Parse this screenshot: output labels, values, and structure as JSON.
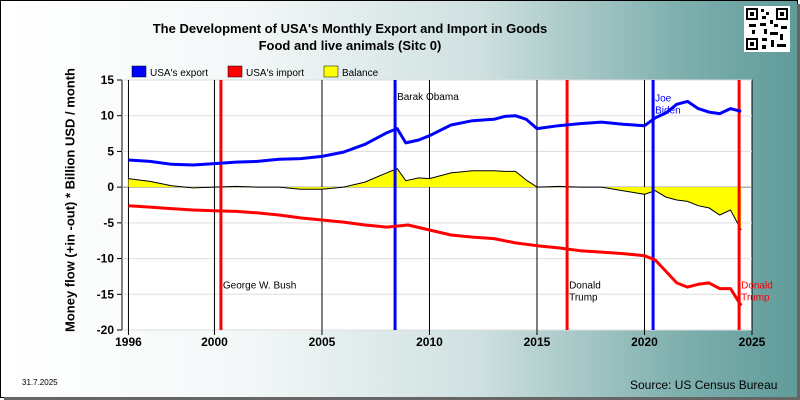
{
  "chart_data": {
    "type": "line",
    "title_line1": "The Development of USA's Monthly Export and Import in Goods",
    "title_line2": "Food and live animals (Sitc 0)",
    "ylabel": "Money flow (+in -out) * Billion USD / month",
    "ylim": [
      -20,
      15
    ],
    "xlim": [
      1995.7,
      2025.0
    ],
    "y_ticks": [
      "15",
      "10",
      "5",
      "0",
      "-5",
      "-10",
      "-15",
      "-20"
    ],
    "x_ticks": [
      "1996",
      "2000",
      "2005",
      "2010",
      "2015",
      "2020",
      "2025"
    ],
    "grid": true,
    "legend": [
      {
        "name": "USA's export",
        "color": "#0000ff"
      },
      {
        "name": "USA's import",
        "color": "#ff0000"
      },
      {
        "name": "Balance",
        "color": "#ffff00"
      }
    ],
    "series": [
      {
        "name": "USA's export",
        "color": "#0000ff",
        "points": [
          [
            1996.0,
            3.8
          ],
          [
            1997.0,
            3.6
          ],
          [
            1998.0,
            3.2
          ],
          [
            1999.0,
            3.1
          ],
          [
            2000.0,
            3.3
          ],
          [
            2001.0,
            3.5
          ],
          [
            2002.0,
            3.6
          ],
          [
            2003.0,
            3.9
          ],
          [
            2004.0,
            4.0
          ],
          [
            2005.0,
            4.3
          ],
          [
            2006.0,
            4.9
          ],
          [
            2007.0,
            6.0
          ],
          [
            2008.0,
            7.6
          ],
          [
            2008.5,
            8.2
          ],
          [
            2008.9,
            6.2
          ],
          [
            2009.5,
            6.6
          ],
          [
            2010.0,
            7.2
          ],
          [
            2011.0,
            8.7
          ],
          [
            2012.0,
            9.3
          ],
          [
            2013.0,
            9.5
          ],
          [
            2013.5,
            9.9
          ],
          [
            2014.0,
            10.0
          ],
          [
            2014.5,
            9.5
          ],
          [
            2015.0,
            8.2
          ],
          [
            2016.0,
            8.6
          ],
          [
            2017.0,
            8.9
          ],
          [
            2018.0,
            9.1
          ],
          [
            2019.0,
            8.8
          ],
          [
            2020.0,
            8.6
          ],
          [
            2020.5,
            9.7
          ],
          [
            2021.0,
            10.4
          ],
          [
            2021.5,
            11.6
          ],
          [
            2022.0,
            12.0
          ],
          [
            2022.5,
            11.0
          ],
          [
            2023.0,
            10.5
          ],
          [
            2023.5,
            10.3
          ],
          [
            2024.0,
            11.0
          ],
          [
            2024.5,
            10.6
          ]
        ]
      },
      {
        "name": "USA's import",
        "color": "#ff0000",
        "points": [
          [
            1996.0,
            -2.6
          ],
          [
            1997.0,
            -2.8
          ],
          [
            1998.0,
            -3.0
          ],
          [
            1999.0,
            -3.2
          ],
          [
            2000.0,
            -3.3
          ],
          [
            2001.0,
            -3.4
          ],
          [
            2002.0,
            -3.6
          ],
          [
            2003.0,
            -3.9
          ],
          [
            2004.0,
            -4.3
          ],
          [
            2005.0,
            -4.6
          ],
          [
            2006.0,
            -4.9
          ],
          [
            2007.0,
            -5.3
          ],
          [
            2008.0,
            -5.6
          ],
          [
            2009.0,
            -5.3
          ],
          [
            2010.0,
            -6.0
          ],
          [
            2011.0,
            -6.7
          ],
          [
            2012.0,
            -7.0
          ],
          [
            2013.0,
            -7.2
          ],
          [
            2014.0,
            -7.8
          ],
          [
            2015.0,
            -8.2
          ],
          [
            2016.0,
            -8.5
          ],
          [
            2017.0,
            -8.9
          ],
          [
            2018.0,
            -9.1
          ],
          [
            2019.0,
            -9.3
          ],
          [
            2020.0,
            -9.6
          ],
          [
            2020.5,
            -10.2
          ],
          [
            2021.0,
            -11.8
          ],
          [
            2021.5,
            -13.4
          ],
          [
            2022.0,
            -14.0
          ],
          [
            2022.5,
            -13.6
          ],
          [
            2023.0,
            -13.4
          ],
          [
            2023.5,
            -14.2
          ],
          [
            2024.0,
            -14.2
          ],
          [
            2024.5,
            -16.6
          ]
        ]
      },
      {
        "name": "Balance",
        "color": "#ffff00",
        "points": [
          [
            1996.0,
            1.2
          ],
          [
            1997.0,
            0.8
          ],
          [
            1998.0,
            0.2
          ],
          [
            1999.0,
            -0.1
          ],
          [
            2000.0,
            0.0
          ],
          [
            2001.0,
            0.1
          ],
          [
            2002.0,
            0.0
          ],
          [
            2003.0,
            0.0
          ],
          [
            2004.0,
            -0.3
          ],
          [
            2005.0,
            -0.3
          ],
          [
            2006.0,
            0.0
          ],
          [
            2007.0,
            0.7
          ],
          [
            2008.0,
            2.0
          ],
          [
            2008.5,
            2.6
          ],
          [
            2008.9,
            0.9
          ],
          [
            2009.5,
            1.3
          ],
          [
            2010.0,
            1.2
          ],
          [
            2011.0,
            2.0
          ],
          [
            2012.0,
            2.3
          ],
          [
            2013.0,
            2.3
          ],
          [
            2013.5,
            2.2
          ],
          [
            2014.0,
            2.2
          ],
          [
            2014.5,
            1.0
          ],
          [
            2015.0,
            0.0
          ],
          [
            2016.0,
            0.1
          ],
          [
            2017.0,
            0.0
          ],
          [
            2018.0,
            0.0
          ],
          [
            2019.0,
            -0.5
          ],
          [
            2020.0,
            -1.0
          ],
          [
            2020.5,
            -0.5
          ],
          [
            2021.0,
            -1.4
          ],
          [
            2021.5,
            -1.8
          ],
          [
            2022.0,
            -2.0
          ],
          [
            2022.5,
            -2.6
          ],
          [
            2023.0,
            -2.9
          ],
          [
            2023.5,
            -3.9
          ],
          [
            2024.0,
            -3.2
          ],
          [
            2024.5,
            -6.0
          ]
        ]
      }
    ],
    "annotations": [
      {
        "year": 2000.3,
        "color": "#ff0000",
        "label_lines": [
          "George W. Bush"
        ],
        "label_y": -14.2
      },
      {
        "year": 2008.4,
        "color": "#0000ff",
        "label_lines": [
          "Barak Obama"
        ],
        "label_y": 12.2
      },
      {
        "year": 2016.4,
        "color": "#ff0000",
        "label_lines": [
          "Donald",
          "Trump"
        ],
        "label_y": -14.2
      },
      {
        "year": 2020.4,
        "color": "#0000ff",
        "label_lines": [
          "Joe",
          "Biden"
        ],
        "label_y": 12.0
      },
      {
        "year": 2024.4,
        "color": "#ff0000",
        "label_lines": [
          "Donald",
          "Trump"
        ],
        "label_y": -14.2
      }
    ]
  },
  "date_note": "31.7.2025",
  "source": "Source: US Census Bureau"
}
